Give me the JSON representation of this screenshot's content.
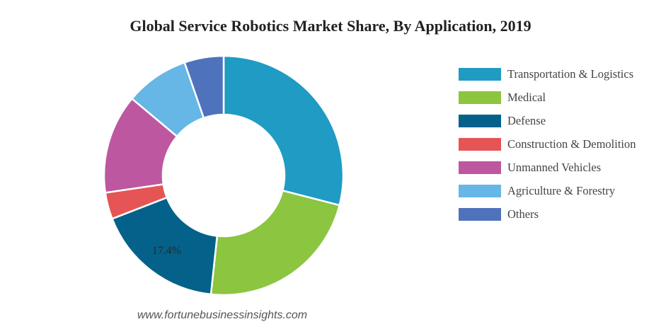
{
  "chart_data": {
    "type": "pie",
    "title": "Global Service Robotics Market Share, By Application, 2019",
    "hole": "donut",
    "legend_position": "right",
    "slices": [
      {
        "label": "Transportation & Logistics",
        "value": 29.0,
        "color": "#1f9bc4"
      },
      {
        "label": "Medical",
        "value": 22.7,
        "color": "#8cc540"
      },
      {
        "label": "Defense",
        "value": 17.4,
        "color": "#04618a",
        "data_label": "17.4%"
      },
      {
        "label": "Construction & Demolition",
        "value": 3.6,
        "color": "#e55555"
      },
      {
        "label": "Unmanned Vehicles",
        "value": 13.4,
        "color": "#bd57a0"
      },
      {
        "label": "Agriculture & Forestry",
        "value": 8.6,
        "color": "#66b6e6"
      },
      {
        "label": "Others",
        "value": 5.3,
        "color": "#4f72bc"
      }
    ]
  },
  "source": "www.fortunebusinessinsights.com"
}
